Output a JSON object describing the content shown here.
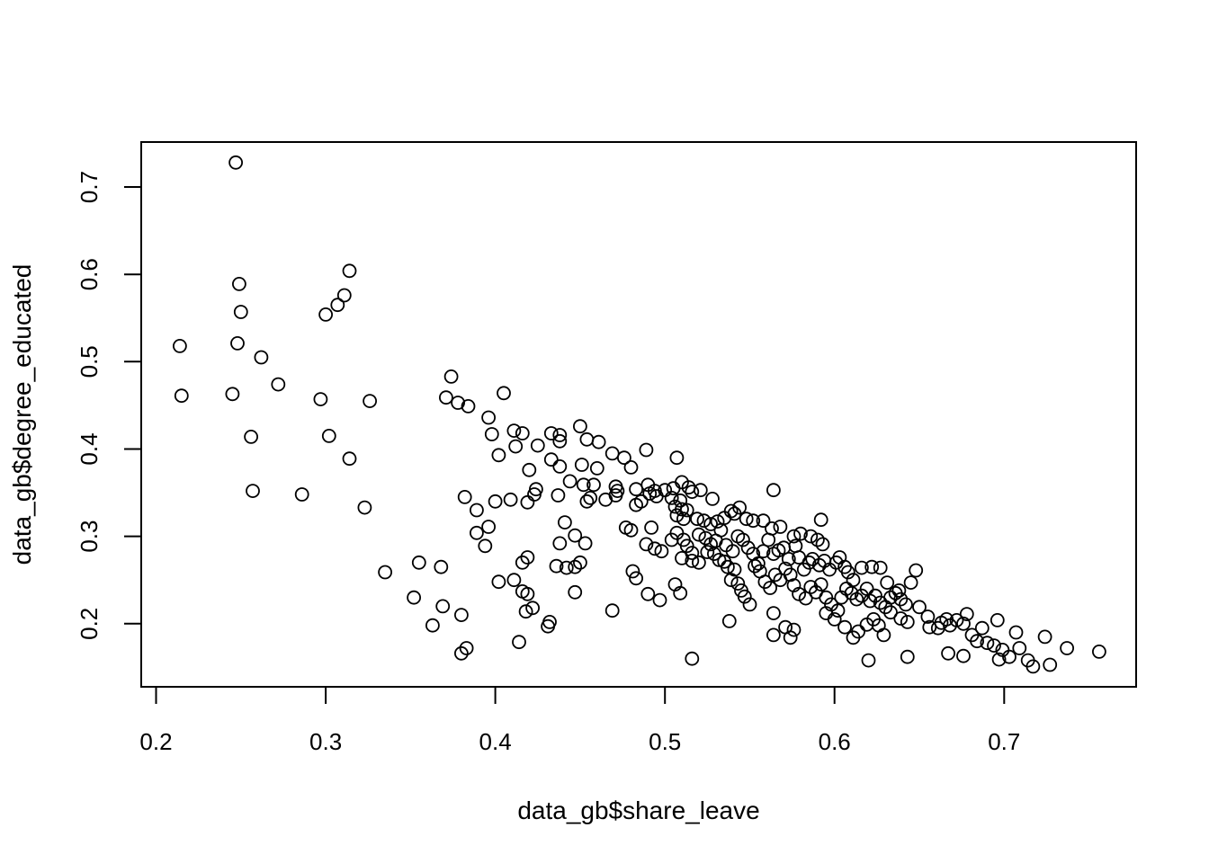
{
  "chart_data": {
    "type": "scatter",
    "title": "",
    "xlabel": "data_gb$share_leave",
    "ylabel": "data_gb$degree_educated",
    "xlim": [
      0.2,
      0.76
    ],
    "ylim": [
      0.15,
      0.73
    ],
    "xticks": [
      "0.2",
      "0.3",
      "0.4",
      "0.5",
      "0.6",
      "0.7"
    ],
    "yticks": [
      "0.2",
      "0.3",
      "0.4",
      "0.5",
      "0.6",
      "0.7"
    ],
    "grid": false,
    "legend": "none",
    "colors": {
      "points": "#000000",
      "frame": "#000000",
      "background": "#ffffff"
    },
    "points": [
      [
        0.247,
        0.728
      ],
      [
        0.314,
        0.604
      ],
      [
        0.249,
        0.589
      ],
      [
        0.311,
        0.576
      ],
      [
        0.307,
        0.565
      ],
      [
        0.3,
        0.554
      ],
      [
        0.25,
        0.557
      ],
      [
        0.214,
        0.518
      ],
      [
        0.248,
        0.521
      ],
      [
        0.262,
        0.505
      ],
      [
        0.272,
        0.474
      ],
      [
        0.215,
        0.461
      ],
      [
        0.245,
        0.463
      ],
      [
        0.297,
        0.457
      ],
      [
        0.326,
        0.455
      ],
      [
        0.256,
        0.414
      ],
      [
        0.302,
        0.415
      ],
      [
        0.314,
        0.389
      ],
      [
        0.257,
        0.352
      ],
      [
        0.286,
        0.348
      ],
      [
        0.323,
        0.333
      ],
      [
        0.335,
        0.259
      ],
      [
        0.374,
        0.483
      ],
      [
        0.371,
        0.459
      ],
      [
        0.378,
        0.453
      ],
      [
        0.384,
        0.449
      ],
      [
        0.405,
        0.464
      ],
      [
        0.396,
        0.436
      ],
      [
        0.398,
        0.417
      ],
      [
        0.411,
        0.421
      ],
      [
        0.416,
        0.418
      ],
      [
        0.433,
        0.418
      ],
      [
        0.438,
        0.416
      ],
      [
        0.438,
        0.409
      ],
      [
        0.412,
        0.403
      ],
      [
        0.402,
        0.393
      ],
      [
        0.425,
        0.404
      ],
      [
        0.45,
        0.426
      ],
      [
        0.454,
        0.411
      ],
      [
        0.461,
        0.408
      ],
      [
        0.469,
        0.395
      ],
      [
        0.476,
        0.39
      ],
      [
        0.48,
        0.379
      ],
      [
        0.433,
        0.388
      ],
      [
        0.438,
        0.38
      ],
      [
        0.451,
        0.382
      ],
      [
        0.46,
        0.378
      ],
      [
        0.42,
        0.376
      ],
      [
        0.444,
        0.363
      ],
      [
        0.452,
        0.359
      ],
      [
        0.458,
        0.359
      ],
      [
        0.471,
        0.357
      ],
      [
        0.472,
        0.352
      ],
      [
        0.483,
        0.354
      ],
      [
        0.49,
        0.359
      ],
      [
        0.489,
        0.399
      ],
      [
        0.507,
        0.39
      ],
      [
        0.424,
        0.354
      ],
      [
        0.423,
        0.348
      ],
      [
        0.437,
        0.347
      ],
      [
        0.456,
        0.344
      ],
      [
        0.454,
        0.34
      ],
      [
        0.465,
        0.342
      ],
      [
        0.471,
        0.347
      ],
      [
        0.382,
        0.345
      ],
      [
        0.4,
        0.34
      ],
      [
        0.409,
        0.342
      ],
      [
        0.419,
        0.339
      ],
      [
        0.389,
        0.33
      ],
      [
        0.396,
        0.311
      ],
      [
        0.389,
        0.304
      ],
      [
        0.394,
        0.289
      ],
      [
        0.441,
        0.316
      ],
      [
        0.447,
        0.301
      ],
      [
        0.453,
        0.292
      ],
      [
        0.477,
        0.31
      ],
      [
        0.48,
        0.307
      ],
      [
        0.438,
        0.292
      ],
      [
        0.419,
        0.276
      ],
      [
        0.416,
        0.27
      ],
      [
        0.436,
        0.266
      ],
      [
        0.442,
        0.264
      ],
      [
        0.447,
        0.265
      ],
      [
        0.45,
        0.27
      ],
      [
        0.411,
        0.25
      ],
      [
        0.402,
        0.248
      ],
      [
        0.416,
        0.237
      ],
      [
        0.419,
        0.234
      ],
      [
        0.447,
        0.236
      ],
      [
        0.422,
        0.218
      ],
      [
        0.418,
        0.214
      ],
      [
        0.355,
        0.27
      ],
      [
        0.368,
        0.265
      ],
      [
        0.352,
        0.23
      ],
      [
        0.369,
        0.22
      ],
      [
        0.38,
        0.21
      ],
      [
        0.363,
        0.198
      ],
      [
        0.431,
        0.197
      ],
      [
        0.432,
        0.202
      ],
      [
        0.414,
        0.179
      ],
      [
        0.383,
        0.172
      ],
      [
        0.38,
        0.166
      ],
      [
        0.469,
        0.215
      ],
      [
        0.483,
        0.336
      ],
      [
        0.486,
        0.34
      ],
      [
        0.491,
        0.349
      ],
      [
        0.495,
        0.346
      ],
      [
        0.494,
        0.352
      ],
      [
        0.5,
        0.353
      ],
      [
        0.505,
        0.355
      ],
      [
        0.51,
        0.362
      ],
      [
        0.514,
        0.356
      ],
      [
        0.516,
        0.351
      ],
      [
        0.521,
        0.353
      ],
      [
        0.528,
        0.343
      ],
      [
        0.504,
        0.344
      ],
      [
        0.509,
        0.341
      ],
      [
        0.506,
        0.334
      ],
      [
        0.51,
        0.331
      ],
      [
        0.513,
        0.33
      ],
      [
        0.507,
        0.324
      ],
      [
        0.511,
        0.32
      ],
      [
        0.519,
        0.32
      ],
      [
        0.523,
        0.318
      ],
      [
        0.527,
        0.314
      ],
      [
        0.531,
        0.317
      ],
      [
        0.535,
        0.321
      ],
      [
        0.539,
        0.329
      ],
      [
        0.541,
        0.326
      ],
      [
        0.544,
        0.333
      ],
      [
        0.548,
        0.32
      ],
      [
        0.552,
        0.318
      ],
      [
        0.558,
        0.318
      ],
      [
        0.563,
        0.309
      ],
      [
        0.568,
        0.311
      ],
      [
        0.564,
        0.353
      ],
      [
        0.576,
        0.3
      ],
      [
        0.58,
        0.303
      ],
      [
        0.586,
        0.3
      ],
      [
        0.59,
        0.296
      ],
      [
        0.592,
        0.319
      ],
      [
        0.593,
        0.291
      ],
      [
        0.492,
        0.31
      ],
      [
        0.489,
        0.291
      ],
      [
        0.494,
        0.286
      ],
      [
        0.498,
        0.283
      ],
      [
        0.504,
        0.296
      ],
      [
        0.507,
        0.304
      ],
      [
        0.511,
        0.296
      ],
      [
        0.513,
        0.289
      ],
      [
        0.516,
        0.281
      ],
      [
        0.52,
        0.302
      ],
      [
        0.524,
        0.298
      ],
      [
        0.527,
        0.291
      ],
      [
        0.53,
        0.295
      ],
      [
        0.533,
        0.307
      ],
      [
        0.536,
        0.29
      ],
      [
        0.54,
        0.283
      ],
      [
        0.543,
        0.3
      ],
      [
        0.546,
        0.296
      ],
      [
        0.549,
        0.287
      ],
      [
        0.552,
        0.28
      ],
      [
        0.555,
        0.269
      ],
      [
        0.558,
        0.283
      ],
      [
        0.561,
        0.296
      ],
      [
        0.564,
        0.28
      ],
      [
        0.567,
        0.284
      ],
      [
        0.57,
        0.287
      ],
      [
        0.573,
        0.274
      ],
      [
        0.577,
        0.289
      ],
      [
        0.579,
        0.276
      ],
      [
        0.582,
        0.262
      ],
      [
        0.585,
        0.27
      ],
      [
        0.587,
        0.274
      ],
      [
        0.591,
        0.267
      ],
      [
        0.594,
        0.272
      ],
      [
        0.597,
        0.262
      ],
      [
        0.601,
        0.27
      ],
      [
        0.603,
        0.276
      ],
      [
        0.606,
        0.265
      ],
      [
        0.608,
        0.259
      ],
      [
        0.611,
        0.25
      ],
      [
        0.481,
        0.26
      ],
      [
        0.483,
        0.252
      ],
      [
        0.49,
        0.234
      ],
      [
        0.497,
        0.227
      ],
      [
        0.506,
        0.245
      ],
      [
        0.509,
        0.235
      ],
      [
        0.51,
        0.275
      ],
      [
        0.516,
        0.272
      ],
      [
        0.52,
        0.27
      ],
      [
        0.525,
        0.282
      ],
      [
        0.529,
        0.28
      ],
      [
        0.532,
        0.273
      ],
      [
        0.535,
        0.271
      ],
      [
        0.537,
        0.265
      ],
      [
        0.539,
        0.25
      ],
      [
        0.541,
        0.262
      ],
      [
        0.543,
        0.246
      ],
      [
        0.545,
        0.238
      ],
      [
        0.547,
        0.231
      ],
      [
        0.55,
        0.222
      ],
      [
        0.553,
        0.266
      ],
      [
        0.556,
        0.26
      ],
      [
        0.559,
        0.248
      ],
      [
        0.562,
        0.241
      ],
      [
        0.565,
        0.256
      ],
      [
        0.568,
        0.25
      ],
      [
        0.571,
        0.263
      ],
      [
        0.574,
        0.256
      ],
      [
        0.576,
        0.244
      ],
      [
        0.579,
        0.234
      ],
      [
        0.583,
        0.229
      ],
      [
        0.586,
        0.242
      ],
      [
        0.589,
        0.236
      ],
      [
        0.592,
        0.245
      ],
      [
        0.595,
        0.23
      ],
      [
        0.598,
        0.222
      ],
      [
        0.602,
        0.215
      ],
      [
        0.604,
        0.23
      ],
      [
        0.607,
        0.24
      ],
      [
        0.61,
        0.235
      ],
      [
        0.613,
        0.228
      ],
      [
        0.616,
        0.232
      ],
      [
        0.619,
        0.24
      ],
      [
        0.621,
        0.226
      ],
      [
        0.624,
        0.232
      ],
      [
        0.627,
        0.224
      ],
      [
        0.63,
        0.219
      ],
      [
        0.633,
        0.23
      ],
      [
        0.636,
        0.235
      ],
      [
        0.639,
        0.228
      ],
      [
        0.642,
        0.222
      ],
      [
        0.616,
        0.264
      ],
      [
        0.622,
        0.265
      ],
      [
        0.627,
        0.264
      ],
      [
        0.631,
        0.247
      ],
      [
        0.638,
        0.238
      ],
      [
        0.648,
        0.261
      ],
      [
        0.645,
        0.247
      ],
      [
        0.538,
        0.203
      ],
      [
        0.564,
        0.212
      ],
      [
        0.564,
        0.187
      ],
      [
        0.571,
        0.196
      ],
      [
        0.574,
        0.184
      ],
      [
        0.576,
        0.193
      ],
      [
        0.595,
        0.212
      ],
      [
        0.6,
        0.205
      ],
      [
        0.606,
        0.196
      ],
      [
        0.611,
        0.184
      ],
      [
        0.614,
        0.191
      ],
      [
        0.619,
        0.199
      ],
      [
        0.623,
        0.205
      ],
      [
        0.626,
        0.198
      ],
      [
        0.629,
        0.187
      ],
      [
        0.633,
        0.213
      ],
      [
        0.639,
        0.206
      ],
      [
        0.643,
        0.202
      ],
      [
        0.65,
        0.219
      ],
      [
        0.655,
        0.208
      ],
      [
        0.656,
        0.196
      ],
      [
        0.661,
        0.195
      ],
      [
        0.663,
        0.201
      ],
      [
        0.666,
        0.205
      ],
      [
        0.668,
        0.198
      ],
      [
        0.672,
        0.204
      ],
      [
        0.676,
        0.2
      ],
      [
        0.678,
        0.211
      ],
      [
        0.681,
        0.187
      ],
      [
        0.684,
        0.18
      ],
      [
        0.687,
        0.195
      ],
      [
        0.69,
        0.178
      ],
      [
        0.694,
        0.175
      ],
      [
        0.696,
        0.204
      ],
      [
        0.699,
        0.17
      ],
      [
        0.703,
        0.162
      ],
      [
        0.707,
        0.19
      ],
      [
        0.709,
        0.172
      ],
      [
        0.714,
        0.158
      ],
      [
        0.717,
        0.151
      ],
      [
        0.62,
        0.158
      ],
      [
        0.643,
        0.162
      ],
      [
        0.667,
        0.166
      ],
      [
        0.676,
        0.163
      ],
      [
        0.697,
        0.159
      ],
      [
        0.724,
        0.185
      ],
      [
        0.727,
        0.153
      ],
      [
        0.737,
        0.172
      ],
      [
        0.756,
        0.168
      ],
      [
        0.516,
        0.16
      ]
    ]
  }
}
